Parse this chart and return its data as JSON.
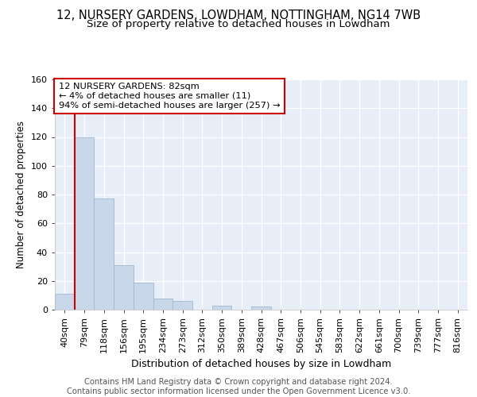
{
  "title1": "12, NURSERY GARDENS, LOWDHAM, NOTTINGHAM, NG14 7WB",
  "title2": "Size of property relative to detached houses in Lowdham",
  "xlabel": "Distribution of detached houses by size in Lowdham",
  "ylabel": "Number of detached properties",
  "bin_labels": [
    "40sqm",
    "79sqm",
    "118sqm",
    "156sqm",
    "195sqm",
    "234sqm",
    "273sqm",
    "312sqm",
    "350sqm",
    "389sqm",
    "428sqm",
    "467sqm",
    "506sqm",
    "545sqm",
    "583sqm",
    "622sqm",
    "661sqm",
    "700sqm",
    "739sqm",
    "777sqm",
    "816sqm"
  ],
  "bar_values": [
    11,
    120,
    77,
    31,
    19,
    8,
    6,
    0,
    3,
    0,
    2,
    0,
    0,
    0,
    0,
    0,
    0,
    0,
    0,
    0,
    0
  ],
  "bar_color": "#c8d8ea",
  "bar_edge_color": "#a0b8cc",
  "vline_x": 0.5,
  "vline_color": "#cc0000",
  "annotation_text": "12 NURSERY GARDENS: 82sqm\n← 4% of detached houses are smaller (11)\n94% of semi-detached houses are larger (257) →",
  "annotation_box_color": "#ffffff",
  "annotation_box_edge": "#cc0000",
  "ylim": [
    0,
    160
  ],
  "yticks": [
    0,
    20,
    40,
    60,
    80,
    100,
    120,
    140,
    160
  ],
  "bg_color": "#e8eef8",
  "grid_color": "#ffffff",
  "footer": "Contains HM Land Registry data © Crown copyright and database right 2024.\nContains public sector information licensed under the Open Government Licence v3.0.",
  "title1_fontsize": 10.5,
  "title2_fontsize": 9.5,
  "xlabel_fontsize": 9,
  "ylabel_fontsize": 8.5,
  "tick_fontsize": 8,
  "footer_fontsize": 7.2
}
